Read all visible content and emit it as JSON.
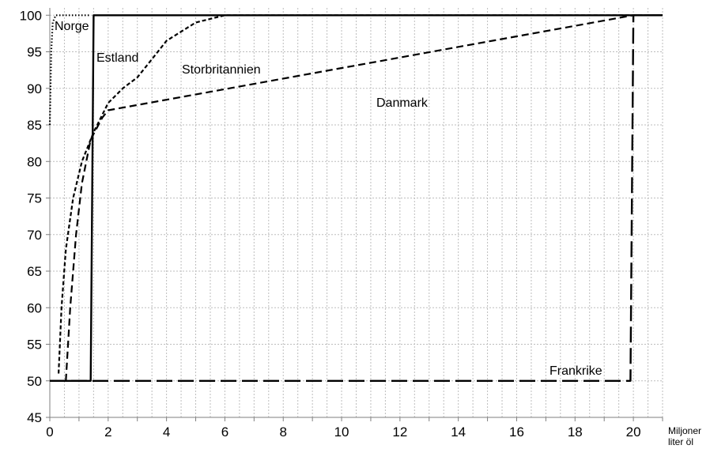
{
  "chart_data": {
    "type": "line",
    "title": "",
    "xlabel": "Miljoner liter öl",
    "ylabel": "",
    "xlim": [
      0,
      21
    ],
    "ylim": [
      45,
      101
    ],
    "x_ticks": [
      0,
      2,
      4,
      6,
      8,
      10,
      12,
      14,
      16,
      18,
      20
    ],
    "y_ticks": [
      45,
      50,
      55,
      60,
      65,
      70,
      75,
      80,
      85,
      90,
      95,
      100
    ],
    "grid": true,
    "legend": "none",
    "series": [
      {
        "name": "Norge",
        "style": "dotted",
        "points": [
          [
            0,
            85
          ],
          [
            0.05,
            95
          ],
          [
            0.1,
            99
          ],
          [
            0.2,
            100
          ],
          [
            1.4,
            100
          ]
        ]
      },
      {
        "name": "Estland",
        "style": "solid",
        "points": [
          [
            0,
            50
          ],
          [
            1.4,
            50
          ],
          [
            1.5,
            100
          ],
          [
            21,
            100
          ]
        ]
      },
      {
        "name": "Storbritannien",
        "style": "short-dashed",
        "points": [
          [
            0.3,
            51
          ],
          [
            0.4,
            60
          ],
          [
            0.55,
            68
          ],
          [
            0.8,
            75
          ],
          [
            1.1,
            80
          ],
          [
            1.5,
            84
          ],
          [
            2,
            88
          ],
          [
            2.5,
            90
          ],
          [
            3,
            91.5
          ],
          [
            3.5,
            94
          ],
          [
            4,
            96.5
          ],
          [
            5,
            99
          ],
          [
            6,
            100
          ],
          [
            21,
            100
          ]
        ]
      },
      {
        "name": "Danmark",
        "style": "dashed",
        "points": [
          [
            0.55,
            50
          ],
          [
            0.7,
            60
          ],
          [
            0.9,
            70
          ],
          [
            1.1,
            77
          ],
          [
            1.4,
            83
          ],
          [
            1.8,
            86
          ],
          [
            2,
            87
          ],
          [
            20,
            100
          ],
          [
            21,
            100
          ]
        ]
      },
      {
        "name": "Frankrike",
        "style": "long-dashed",
        "points": [
          [
            0,
            50
          ],
          [
            19.9,
            50
          ],
          [
            20,
            100
          ],
          [
            21,
            100
          ]
        ]
      }
    ],
    "labels": {
      "norge": "Norge",
      "estland": "Estland",
      "storbritannien": "Storbritannien",
      "danmark": "Danmark",
      "frankrike": "Frankrike",
      "unit_line1": "Miljoner",
      "unit_line2": "liter öl"
    }
  }
}
